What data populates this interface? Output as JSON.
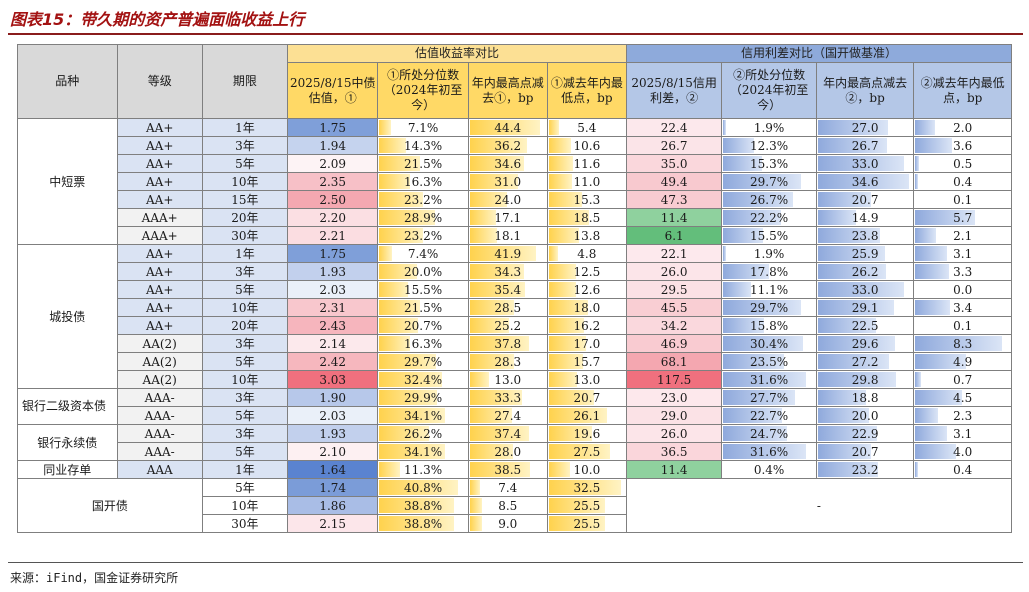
{
  "title": "图表15：带久期的资产普遍面临收益上行",
  "source": "来源：iFind，国金证券研究所",
  "colors": {
    "title": "#a31212",
    "header_valuation": "#fce094",
    "header_spread": "#8eaadb",
    "bar_gold": "#ffd24d",
    "bar_blue": "#8fa9dc"
  },
  "header": {
    "variety": "品种",
    "grade": "等级",
    "term": "期限",
    "valuation_group": "估值收益率对比",
    "spread_group": "信用利差对比（国开做基准）",
    "columns": [
      "2025/8/15中债估值，①",
      "①所处分位数（2024年初至今）",
      "年内最高点减去①，bp",
      "①减去年内最低点，bp",
      "2025/8/15信用利差，②",
      "②所处分位数（2024年初至今）",
      "年内最高点减去②，bp",
      "②减去年内最低点，bp"
    ]
  },
  "groups": [
    {
      "name": "中短票",
      "rows": 7
    },
    {
      "name": "城投债",
      "rows": 8
    },
    {
      "name": "银行二级资本债",
      "rows": 2
    },
    {
      "name": "银行永续债",
      "rows": 2
    },
    {
      "name": "同业存单",
      "rows": 1
    },
    {
      "name": "国开债",
      "rows": 3
    }
  ],
  "spread_blank": "-",
  "rows": [
    {
      "grade": "AA+",
      "term": "1年",
      "val": "1.75",
      "pct": "7.1%",
      "up": "44.4",
      "down": "5.4",
      "spread": "22.4",
      "spct": "1.9%",
      "sup": "27.0",
      "sdown": "2.0",
      "val_color": "#7f9fd9",
      "spread_color": "#fce8ec"
    },
    {
      "grade": "AA+",
      "term": "3年",
      "val": "1.94",
      "pct": "14.3%",
      "up": "36.2",
      "down": "10.6",
      "spread": "26.7",
      "spct": "12.3%",
      "sup": "26.7",
      "sdown": "3.6",
      "val_color": "#c5d3ee",
      "spread_color": "#fbe4e8"
    },
    {
      "grade": "AA+",
      "term": "5年",
      "val": "2.09",
      "pct": "21.5%",
      "up": "34.6",
      "down": "11.6",
      "spread": "35.0",
      "spct": "15.3%",
      "sup": "33.0",
      "sdown": "0.5",
      "val_color": "#fdf3f5",
      "spread_color": "#fad7dc"
    },
    {
      "grade": "AA+",
      "term": "10年",
      "val": "2.35",
      "pct": "16.3%",
      "up": "31.0",
      "down": "11.0",
      "spread": "49.4",
      "spct": "29.7%",
      "sup": "34.6",
      "sdown": "0.4",
      "val_color": "#f7c0c7",
      "spread_color": "#f8c9cf"
    },
    {
      "grade": "AA+",
      "term": "15年",
      "val": "2.50",
      "pct": "23.2%",
      "up": "24.0",
      "down": "15.3",
      "spread": "47.3",
      "spct": "26.7%",
      "sup": "20.7",
      "sdown": "0.1",
      "val_color": "#f4a8b1",
      "spread_color": "#f8cbd1"
    },
    {
      "grade": "AAA+",
      "term": "20年",
      "val": "2.20",
      "pct": "28.9%",
      "up": "17.1",
      "down": "18.5",
      "spread": "11.4",
      "spct": "22.2%",
      "sup": "14.9",
      "sdown": "5.7",
      "val_color": "#fbdfe3",
      "spread_color": "#8fd19e"
    },
    {
      "grade": "AAA+",
      "term": "30年",
      "val": "2.21",
      "pct": "23.2%",
      "up": "18.1",
      "down": "13.8",
      "spread": "6.1",
      "spct": "15.5%",
      "sup": "23.8",
      "sdown": "2.1",
      "val_color": "#fbdde1",
      "spread_color": "#63be7b"
    },
    {
      "grade": "AA+",
      "term": "1年",
      "val": "1.75",
      "pct": "7.4%",
      "up": "41.9",
      "down": "4.8",
      "spread": "22.1",
      "spct": "1.9%",
      "sup": "25.9",
      "sdown": "3.1",
      "val_color": "#7f9fd9",
      "spread_color": "#fde9ed"
    },
    {
      "grade": "AA+",
      "term": "3年",
      "val": "1.93",
      "pct": "20.0%",
      "up": "34.3",
      "down": "12.5",
      "spread": "26.0",
      "spct": "17.8%",
      "sup": "26.2",
      "sdown": "3.3",
      "val_color": "#c2d0ed",
      "spread_color": "#fce5e9"
    },
    {
      "grade": "AA+",
      "term": "5年",
      "val": "2.03",
      "pct": "15.5%",
      "up": "35.4",
      "down": "12.6",
      "spread": "29.5",
      "spct": "11.1%",
      "sup": "33.0",
      "sdown": "0.0",
      "val_color": "#eaf0f9",
      "spread_color": "#fbe1e5"
    },
    {
      "grade": "AA+",
      "term": "10年",
      "val": "2.31",
      "pct": "21.5%",
      "up": "28.5",
      "down": "18.0",
      "spread": "45.5",
      "spct": "29.7%",
      "sup": "29.1",
      "sdown": "3.4",
      "val_color": "#f8c7cd",
      "spread_color": "#f9ced3"
    },
    {
      "grade": "AA+",
      "term": "20年",
      "val": "2.43",
      "pct": "20.7%",
      "up": "25.2",
      "down": "16.2",
      "spread": "34.2",
      "spct": "15.8%",
      "sup": "22.5",
      "sdown": "0.1",
      "val_color": "#f6b5bd",
      "spread_color": "#fad8dd"
    },
    {
      "grade": "AA(2)",
      "term": "3年",
      "val": "2.14",
      "pct": "16.3%",
      "up": "37.8",
      "down": "17.0",
      "spread": "46.9",
      "spct": "30.4%",
      "sup": "29.6",
      "sdown": "8.3",
      "val_color": "#fce9ec",
      "spread_color": "#f9cbd1"
    },
    {
      "grade": "AA(2)",
      "term": "5年",
      "val": "2.42",
      "pct": "29.7%",
      "up": "28.3",
      "down": "15.7",
      "spread": "68.1",
      "spct": "23.5%",
      "sup": "27.2",
      "sdown": "4.9",
      "val_color": "#f6b7be",
      "spread_color": "#f4a7b0"
    },
    {
      "grade": "AA(2)",
      "term": "10年",
      "val": "3.03",
      "pct": "32.4%",
      "up": "13.0",
      "down": "13.0",
      "spread": "117.5",
      "spct": "31.6%",
      "sup": "29.8",
      "sdown": "0.7",
      "val_color": "#f0707e",
      "spread_color": "#f0707e"
    },
    {
      "grade": "AAA-",
      "term": "3年",
      "val": "1.90",
      "pct": "29.9%",
      "up": "33.3",
      "down": "20.7",
      "spread": "23.0",
      "spct": "27.7%",
      "sup": "18.8",
      "sdown": "4.5",
      "val_color": "#b7c8ea",
      "spread_color": "#fde8ec"
    },
    {
      "grade": "AAA-",
      "term": "5年",
      "val": "2.03",
      "pct": "34.1%",
      "up": "27.4",
      "down": "26.1",
      "spread": "29.0",
      "spct": "22.7%",
      "sup": "20.0",
      "sdown": "2.3",
      "val_color": "#eaf0f9",
      "spread_color": "#fbe2e6"
    },
    {
      "grade": "AAA-",
      "term": "3年",
      "val": "1.93",
      "pct": "26.2%",
      "up": "37.4",
      "down": "19.6",
      "spread": "26.0",
      "spct": "24.7%",
      "sup": "22.9",
      "sdown": "3.1",
      "val_color": "#c2d0ed",
      "spread_color": "#fce5e9"
    },
    {
      "grade": "AAA-",
      "term": "5年",
      "val": "2.10",
      "pct": "34.1%",
      "up": "28.0",
      "down": "27.5",
      "spread": "36.5",
      "spct": "31.6%",
      "sup": "20.7",
      "sdown": "4.0",
      "val_color": "#fdf0f2",
      "spread_color": "#fad6db"
    },
    {
      "grade": "AAA",
      "term": "1年",
      "val": "1.64",
      "pct": "11.3%",
      "up": "38.5",
      "down": "10.0",
      "spread": "11.4",
      "spct": "0.4%",
      "sup": "23.2",
      "sdown": "0.4",
      "val_color": "#5a83d0",
      "spread_color": "#8fd19e"
    },
    {
      "grade": "",
      "term": "5年",
      "val": "1.74",
      "pct": "40.8%",
      "up": "7.4",
      "down": "32.5",
      "val_color": "#7b9cd8"
    },
    {
      "grade": "",
      "term": "10年",
      "val": "1.86",
      "pct": "38.8%",
      "up": "8.5",
      "down": "25.5",
      "val_color": "#a9bde6"
    },
    {
      "grade": "",
      "term": "30年",
      "val": "2.15",
      "pct": "38.8%",
      "up": "9.0",
      "down": "25.5",
      "val_color": "#fce6ea"
    }
  ]
}
